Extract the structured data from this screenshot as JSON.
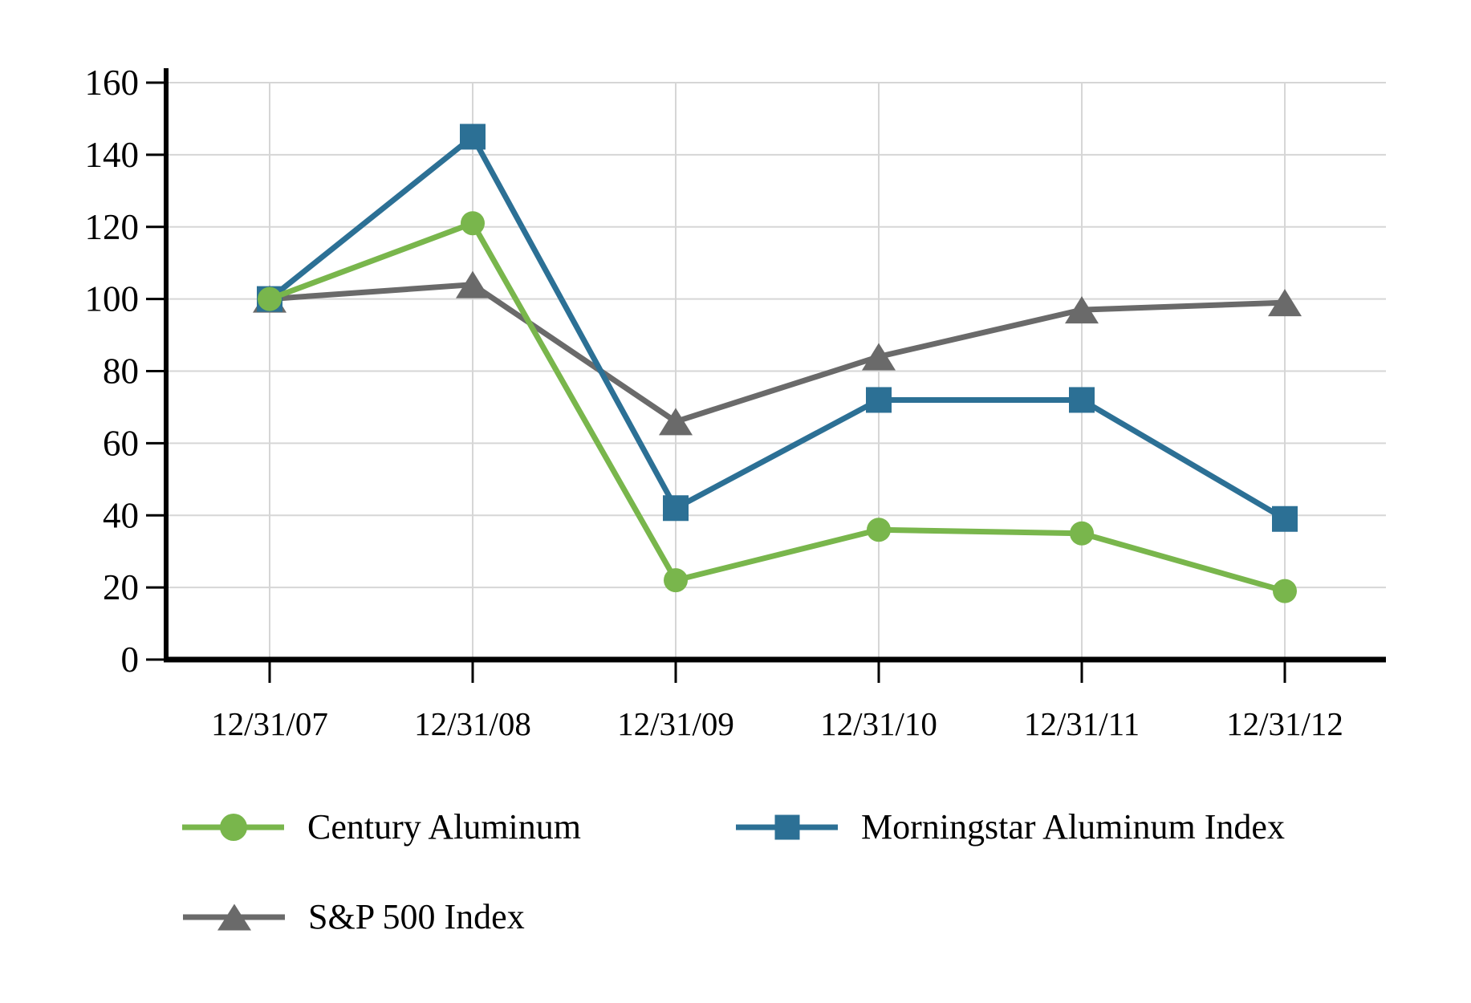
{
  "chart_data": {
    "type": "line",
    "title": "",
    "xlabel": "",
    "ylabel": "",
    "categories": [
      "12/31/07",
      "12/31/08",
      "12/31/09",
      "12/31/10",
      "12/31/11",
      "12/31/12"
    ],
    "series": [
      {
        "name": "Century Aluminum",
        "marker": "circle",
        "color": "#79B64C",
        "values": [
          100,
          121,
          22,
          36,
          35,
          19
        ]
      },
      {
        "name": "Morningstar Aluminum Index",
        "marker": "square",
        "color": "#2C7095",
        "values": [
          100,
          145,
          42,
          72,
          72,
          39
        ]
      },
      {
        "name": "S&P 500 Index",
        "marker": "triangle",
        "color": "#6A6A6A",
        "values": [
          100,
          104,
          66,
          84,
          97,
          99
        ]
      }
    ],
    "y_ticks": [
      0,
      20,
      40,
      60,
      80,
      100,
      120,
      140,
      160
    ],
    "ylim": [
      0,
      160
    ],
    "grid": true,
    "gridline_color": "#D6D6D6",
    "axis_color": "#000000",
    "legend_position": "bottom-left"
  },
  "legend": {
    "items": [
      {
        "label": "Century Aluminum"
      },
      {
        "label": "Morningstar Aluminum Index"
      },
      {
        "label": "S&P 500 Index"
      }
    ]
  }
}
